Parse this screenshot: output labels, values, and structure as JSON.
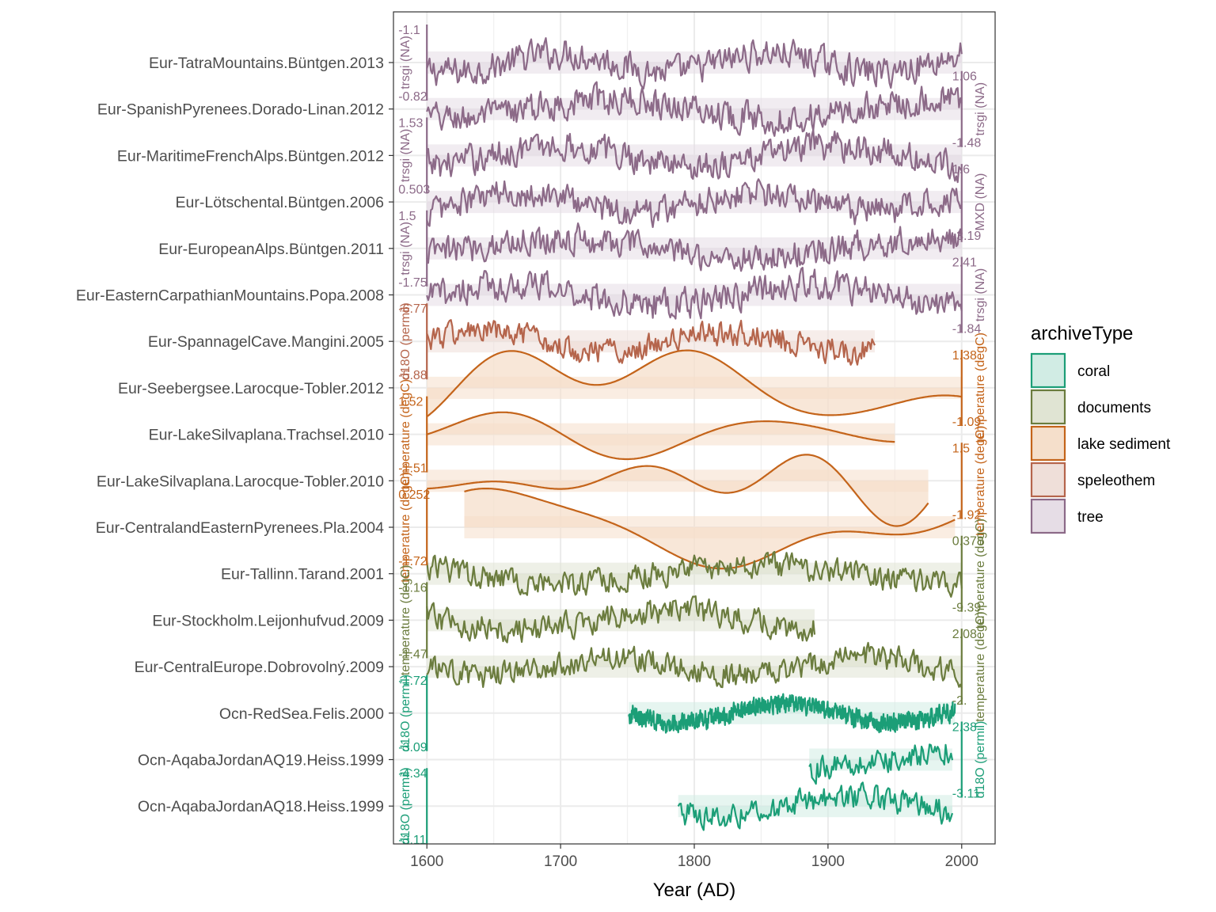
{
  "chart_data": {
    "type": "line",
    "title": "",
    "xlabel": "Year (AD)",
    "ylabel": "",
    "xlim": [
      1575,
      2025
    ],
    "x_ticks": [
      1600,
      1700,
      1800,
      1900,
      2000
    ],
    "grid": true,
    "legend": {
      "title": "archiveType",
      "placement": "right",
      "entries": [
        {
          "label": "coral",
          "color": "#1B9E77"
        },
        {
          "label": "documents",
          "color": "#66A61E"
        },
        {
          "label": "lake sediment",
          "color": "#D95F02"
        },
        {
          "label": "speleothem",
          "color": "#E7298A"
        },
        {
          "label": "tree",
          "color": "#7570B3"
        }
      ]
    },
    "records": [
      {
        "name": "Eur-TatraMountains.Büntgen.2013",
        "archiveType": "tree",
        "start": 1600,
        "end": 2000,
        "min_label": "-0.82",
        "max_label": "-1.1",
        "axis_side": "left",
        "axis_title": "trsgi (NA)",
        "roughness": "high"
      },
      {
        "name": "Eur-SpanishPyrenees.Dorado-Linan.2012",
        "archiveType": "tree",
        "start": 1600,
        "end": 2000,
        "min_label": "-1.48",
        "max_label": "1.06",
        "axis_side": "right",
        "axis_title": "trsgi (NA)",
        "roughness": "high"
      },
      {
        "name": "Eur-MaritimeFrenchAlps.Büntgen.2012",
        "archiveType": "tree",
        "start": 1600,
        "end": 2000,
        "min_label": "0.503",
        "max_label": "1.53",
        "axis_side": "left",
        "axis_title": "trsgi (NA)",
        "roughness": "high"
      },
      {
        "name": "Eur-Lötschental.Büntgen.2006",
        "archiveType": "tree",
        "start": 1600,
        "end": 2000,
        "min_label": "-3.19",
        "max_label": "1.6",
        "axis_side": "right",
        "axis_title": "MXD (NA)",
        "roughness": "high"
      },
      {
        "name": "Eur-EuropeanAlps.Büntgen.2011",
        "archiveType": "tree",
        "start": 1600,
        "end": 2000,
        "min_label": "-1.75",
        "max_label": "1.5",
        "axis_side": "left",
        "axis_title": "trsgi (NA)",
        "roughness": "high"
      },
      {
        "name": "Eur-EasternCarpathianMountains.Popa.2008",
        "archiveType": "tree",
        "start": 1600,
        "end": 2000,
        "min_label": "-1.84",
        "max_label": "2.41",
        "axis_side": "right",
        "axis_title": "trsgi (NA)",
        "roughness": "high"
      },
      {
        "name": "Eur-SpannagelCave.Mangini.2005",
        "archiveType": "speleothem",
        "start": 1600,
        "end": 1935,
        "min_label": "-5.88",
        "max_label": "-6.77",
        "axis_side": "left",
        "axis_title": "d18O (permil)",
        "roughness": "medium"
      },
      {
        "name": "Eur-Seebergsee.Larocque-Tobler.2012",
        "archiveType": "lake sediment",
        "start": 1600,
        "end": 2000,
        "min_label": "-1.09",
        "max_label": "1.38",
        "axis_side": "right",
        "axis_title": "temperature (degC)",
        "roughness": "smooth"
      },
      {
        "name": "Eur-LakeSilvaplana.Trachsel.2010",
        "archiveType": "lake sediment",
        "start": 1600,
        "end": 1950,
        "min_label": "-1.51",
        "max_label": "1.52",
        "axis_side": "left",
        "axis_title": "temperature (degC)",
        "roughness": "smooth"
      },
      {
        "name": "Eur-LakeSilvaplana.Larocque-Tobler.2010",
        "archiveType": "lake sediment",
        "start": 1600,
        "end": 1975,
        "min_label": "-1.92",
        "max_label": "1.5",
        "axis_side": "right",
        "axis_title": "temperature (degC)",
        "roughness": "smooth"
      },
      {
        "name": "Eur-CentralandEasternPyrenees.Pla.2004",
        "archiveType": "lake sediment",
        "start": 1628,
        "end": 1995,
        "min_label": "-1.72",
        "max_label": "0.252",
        "axis_side": "left",
        "axis_title": "temperature (degC)",
        "roughness": "smooth"
      },
      {
        "name": "Eur-Tallinn.Tarand.2001",
        "archiveType": "documents",
        "start": 1600,
        "end": 2000,
        "min_label": "-9.39",
        "max_label": "0.378",
        "axis_side": "right",
        "axis_title": "temperature (degC)",
        "roughness": "high"
      },
      {
        "name": "Eur-Stockholm.Leijonhufvud.2009",
        "archiveType": "documents",
        "start": 1600,
        "end": 1890,
        "min_label": "-1.47",
        "max_label": "-1.16",
        "axis_side": "left",
        "axis_title": "temperature (degC)",
        "roughness": "high"
      },
      {
        "name": "Eur-CentralEurope.Dobrovolný.2009",
        "archiveType": "documents",
        "start": 1600,
        "end": 2000,
        "min_label": "-2.",
        "max_label": "2.08",
        "axis_side": "right",
        "axis_title": "temperature (degC)",
        "roughness": "high"
      },
      {
        "name": "Ocn-RedSea.Felis.2000",
        "archiveType": "coral",
        "start": 1751,
        "end": 1995,
        "min_label": "-3.09",
        "max_label": "-1.72",
        "axis_side": "left",
        "axis_title": "d18O (permil)",
        "roughness": "veryhigh"
      },
      {
        "name": "Ocn-AqabaJordanAQ19.Heiss.1999",
        "archiveType": "coral",
        "start": 1886,
        "end": 1993,
        "min_label": "-3.11",
        "max_label": "2.38",
        "axis_side": "right",
        "axis_title": "d18O (permil)",
        "roughness": "high"
      },
      {
        "name": "Ocn-AqabaJordanAQ18.Heiss.1999",
        "archiveType": "coral",
        "start": 1788,
        "end": 1993,
        "min_label": "-3.11",
        "max_label": "-4.34",
        "axis_side": "left",
        "axis_title": "d18O (permil)",
        "roughness": "high"
      }
    ],
    "legend_swatches": {
      "coral": {
        "fill": "#d1ece4",
        "stroke": "#1b9e77"
      },
      "documents": {
        "fill": "#e0e4d3",
        "stroke": "#6b7c3e"
      },
      "lake sediment": {
        "fill": "#f5dfcb",
        "stroke": "#c4641a"
      },
      "speleothem": {
        "fill": "#efdfd9",
        "stroke": "#b5654c"
      },
      "tree": {
        "fill": "#e6dde6",
        "stroke": "#8c6a88"
      }
    },
    "line_colors": {
      "coral": "#1b9e77",
      "documents": "#6b7c3e",
      "lake sediment": "#c4641a",
      "speleothem": "#b5654c",
      "tree": "#8c6a88"
    },
    "band_colors": {
      "coral": "#d1ece4",
      "documents": "#e0e4d3",
      "lake sediment": "#f5dfcb",
      "speleothem": "#efdfd9",
      "tree": "#e6dde6"
    }
  }
}
